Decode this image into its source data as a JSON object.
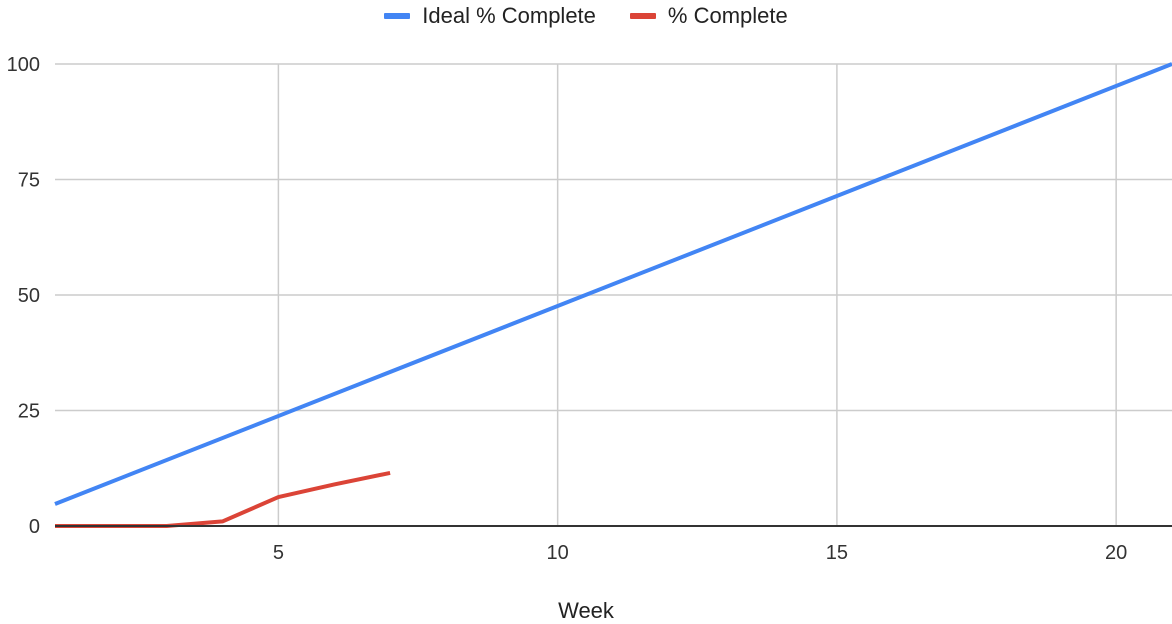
{
  "chart_data": {
    "type": "line",
    "xlabel": "Week",
    "ylabel": "",
    "xlim": [
      1,
      21
    ],
    "ylim": [
      0,
      100
    ],
    "xticks": [
      5,
      10,
      15,
      20
    ],
    "yticks": [
      0,
      25,
      50,
      75,
      100
    ],
    "grid": true,
    "legend_position": "top-center",
    "series": [
      {
        "name": "Ideal % Complete",
        "color": "#4285f4",
        "x": [
          1,
          21
        ],
        "y": [
          4.76,
          100
        ]
      },
      {
        "name": "% Complete",
        "color": "#db4437",
        "x": [
          1,
          2,
          3,
          4,
          5,
          6,
          7
        ],
        "y": [
          0,
          0,
          0,
          1,
          6.25,
          9,
          11.5
        ]
      }
    ]
  }
}
